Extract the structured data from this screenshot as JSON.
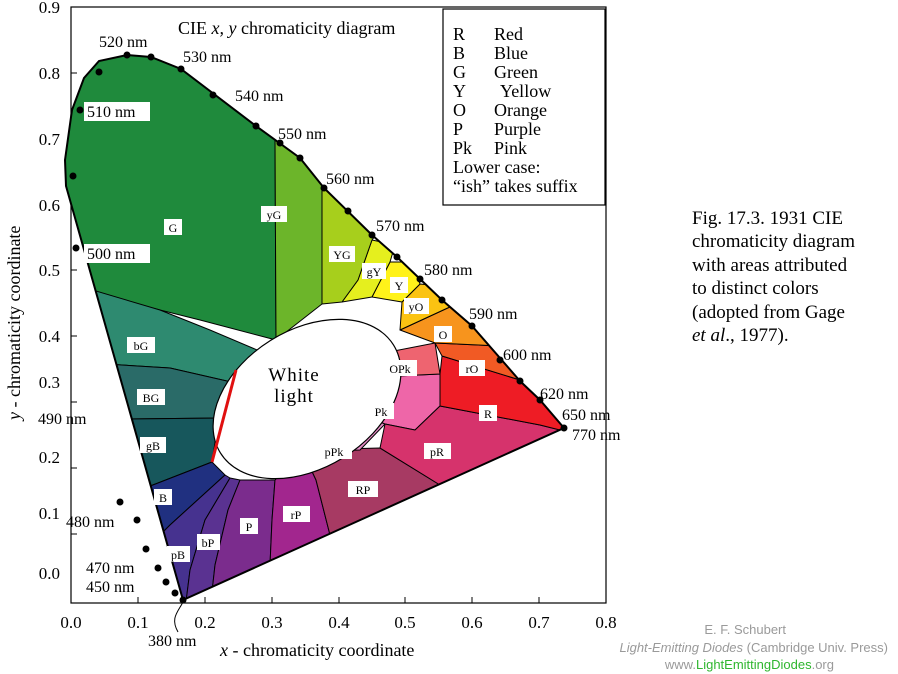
{
  "diagram": {
    "title_prefix": "CIE ",
    "title_italic": "x, y",
    "title_suffix": " chromaticity diagram",
    "x_axis_label_italic": "x",
    "x_axis_label_rest": " - chromaticity coordinate",
    "y_axis_label_italic": "y",
    "y_axis_label_rest": " - chromaticity  coordinate",
    "x_ticks": [
      "0.0",
      "0.1",
      "0.2",
      "0.3",
      "0.4",
      "0.5",
      "0.6",
      "0.7",
      "0.8"
    ],
    "y_ticks": [
      "0.9",
      "0.8",
      "0.7",
      "0.6",
      "0.5",
      "0.4",
      "0.3",
      "0.2",
      "0.1",
      "0.0"
    ],
    "wavelengths": [
      "520 nm",
      "530 nm",
      "540 nm",
      "550 nm",
      "560 nm",
      "570 nm",
      "580 nm",
      "590 nm",
      "600 nm",
      "620 nm",
      "650 nm",
      "770 nm",
      "510 nm",
      "500 nm",
      "490 nm",
      "480 nm",
      "470 nm",
      "450 nm",
      "380 nm"
    ],
    "white_light": [
      "White",
      "light"
    ],
    "regions": [
      "G",
      "yG",
      "YG",
      "gY",
      "Y",
      "yO",
      "O",
      "rO",
      "R",
      "pR",
      "RP",
      "rP",
      "P",
      "bP",
      "pB",
      "B",
      "gB",
      "BG",
      "bG",
      "OPk",
      "Pk",
      "pPk"
    ]
  },
  "legend": {
    "entries": [
      {
        "code": "R",
        "name": "Red"
      },
      {
        "code": "B",
        "name": "Blue"
      },
      {
        "code": "G",
        "name": "Green"
      },
      {
        "code": "Y",
        "name": "Yellow"
      },
      {
        "code": "O",
        "name": "Orange"
      },
      {
        "code": "P",
        "name": "Purple"
      },
      {
        "code": "Pk",
        "name": "Pink"
      }
    ],
    "note_1": "Lower case:",
    "note_2": "“ish” takes suffix"
  },
  "caption": {
    "line_1": "Fig. 17.3. 1931 CIE",
    "line_2": "chromaticity diagram",
    "line_3": "with areas attributed",
    "line_4": "to distinct colors",
    "line_5": "(adopted from Gage",
    "line_6_italic": "et al",
    "line_6_rest": "., 1977)."
  },
  "credit": {
    "author": "E. F. Schubert",
    "book_italic": "Light-Emitting Diodes",
    "book_rest": " (Cambridge Univ. Press)",
    "web_prefix": "www.",
    "web_main": "LightEmittingDiodes",
    "web_suffix": ".org"
  },
  "colors": {
    "G": "#1f8a3c",
    "yG": "#6cb52a",
    "YG": "#a7cf1c",
    "gY": "#e5ef1e",
    "Y": "#fff21a",
    "yO": "#fbc312",
    "O": "#f7941d",
    "rO": "#f15a24",
    "R": "#ee1c25",
    "pR": "#d6336c",
    "RP": "#a73a63",
    "rP": "#a2268e",
    "P": "#7b2c8d",
    "bP": "#5a3291",
    "pB": "#46328f",
    "B": "#203080",
    "gB": "#17575c",
    "BG": "#2a6b68",
    "bG": "#2e8a70",
    "OPk": "#ee6470",
    "Pk": "#ee66a8",
    "pPk": "#e58bc4",
    "red_line": "#e01010"
  }
}
